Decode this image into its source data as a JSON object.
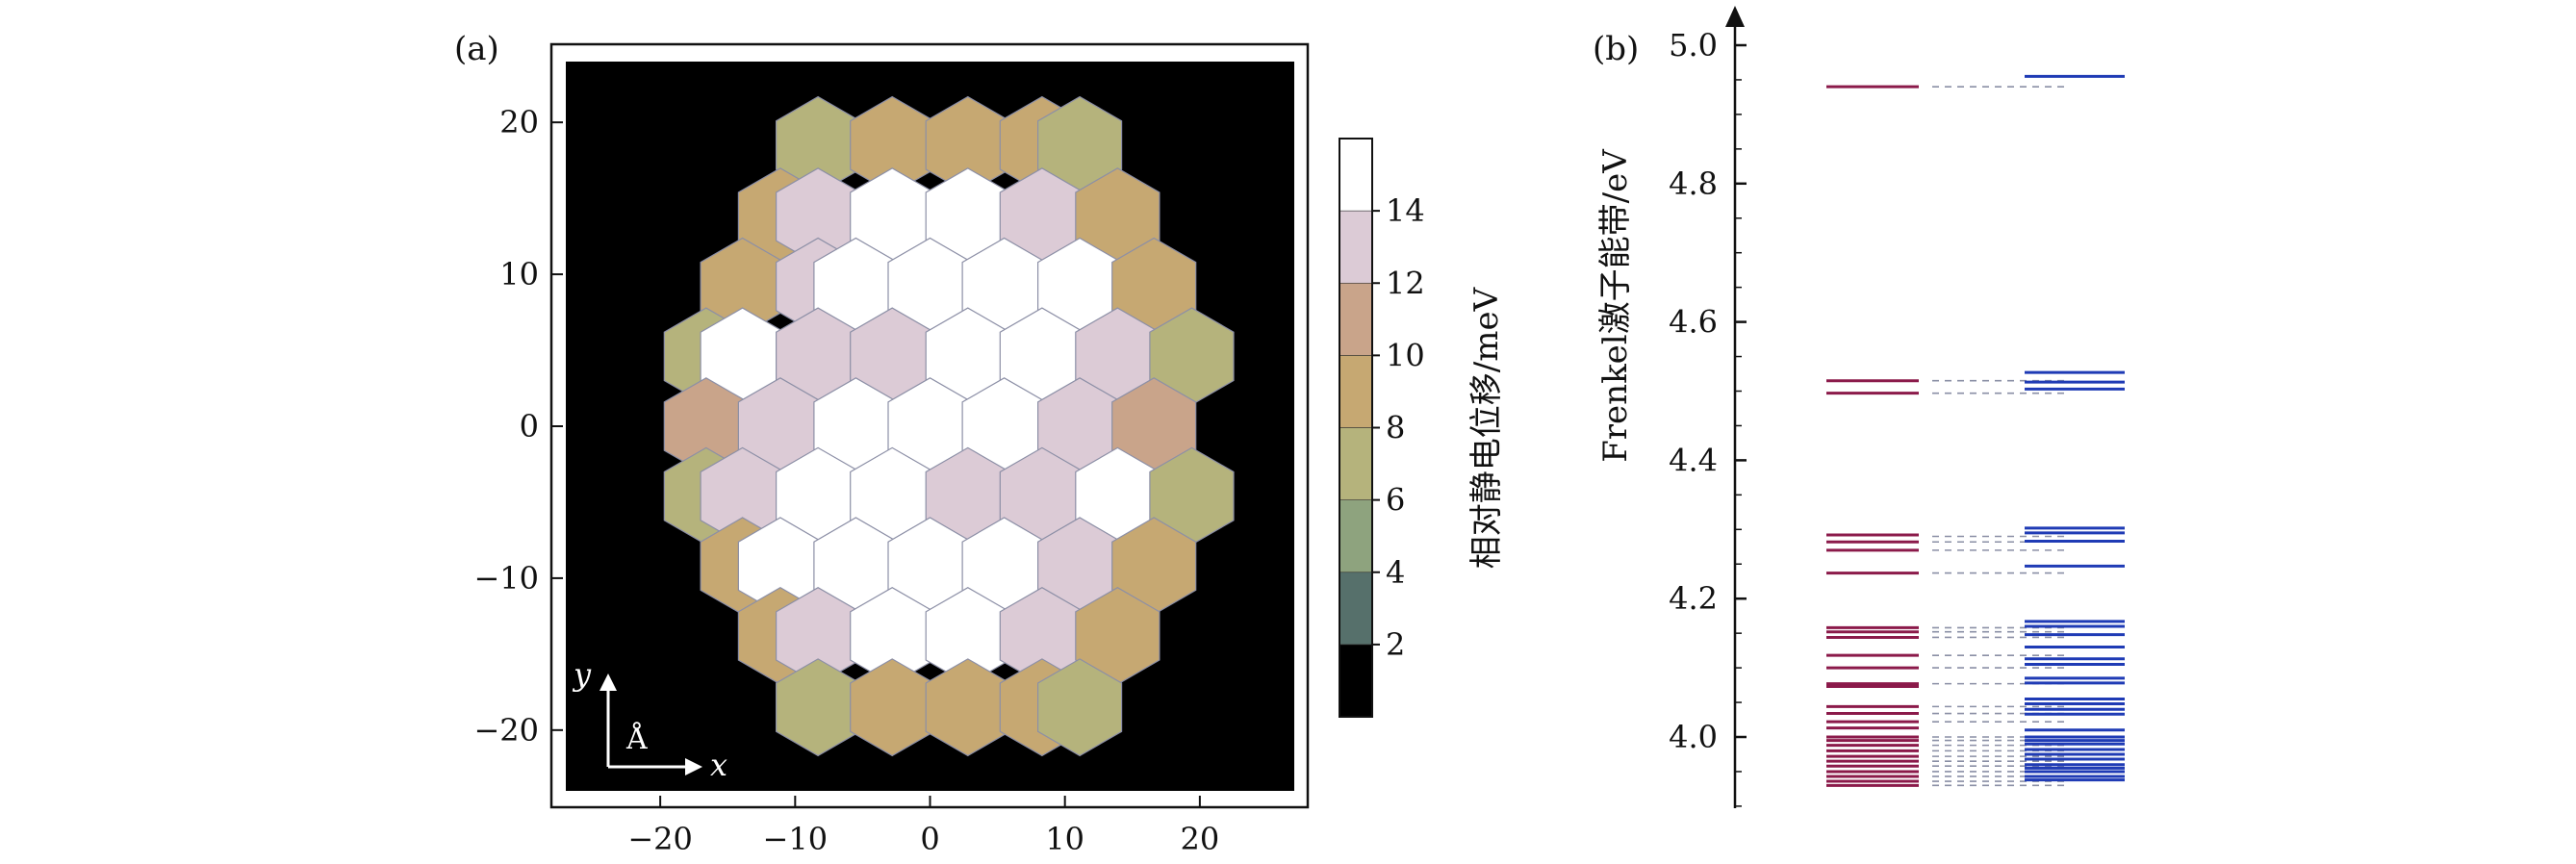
{
  "chart_data": [
    {
      "panel": "(a)",
      "type": "heatmap",
      "layout": "hexagonal-lattice",
      "xlim": [
        -27,
        27
      ],
      "ylim": [
        -24,
        24
      ],
      "xticks": [
        -20,
        -10,
        0,
        10,
        20
      ],
      "yticks": [
        -20,
        -10,
        0,
        10,
        20
      ],
      "xtick_labels": [
        "−20",
        "−10",
        "0",
        "10",
        "20"
      ],
      "ytick_labels": [
        "−20",
        "−10",
        "0",
        "10",
        "20"
      ],
      "hex_radius": 3.2,
      "cells": [
        {
          "x": -8.3,
          "y": 18.5,
          "value": 6
        },
        {
          "x": -2.8,
          "y": 18.5,
          "value": 9
        },
        {
          "x": 2.8,
          "y": 18.5,
          "value": 9
        },
        {
          "x": 8.3,
          "y": 18.5,
          "value": 9
        },
        {
          "x": 11.1,
          "y": 18.5,
          "value": 6
        },
        {
          "x": -11.1,
          "y": 13.8,
          "value": 9
        },
        {
          "x": -8.3,
          "y": 13.8,
          "value": 13
        },
        {
          "x": -2.8,
          "y": 13.8,
          "value": 15
        },
        {
          "x": 2.8,
          "y": 13.8,
          "value": 15
        },
        {
          "x": 8.3,
          "y": 13.8,
          "value": 13
        },
        {
          "x": 13.9,
          "y": 13.8,
          "value": 9
        },
        {
          "x": -13.9,
          "y": 9.2,
          "value": 9
        },
        {
          "x": -8.3,
          "y": 9.2,
          "value": 13
        },
        {
          "x": -5.5,
          "y": 9.2,
          "value": 15
        },
        {
          "x": 0.0,
          "y": 9.2,
          "value": 15
        },
        {
          "x": 5.5,
          "y": 9.2,
          "value": 15
        },
        {
          "x": 11.1,
          "y": 9.2,
          "value": 15
        },
        {
          "x": 16.6,
          "y": 9.2,
          "value": 9
        },
        {
          "x": -16.6,
          "y": 4.6,
          "value": 6
        },
        {
          "x": -13.9,
          "y": 4.6,
          "value": 15
        },
        {
          "x": -8.3,
          "y": 4.6,
          "value": 13
        },
        {
          "x": -2.8,
          "y": 4.6,
          "value": 13
        },
        {
          "x": 2.8,
          "y": 4.6,
          "value": 15
        },
        {
          "x": 8.3,
          "y": 4.6,
          "value": 15
        },
        {
          "x": 13.9,
          "y": 4.6,
          "value": 13
        },
        {
          "x": 19.4,
          "y": 4.6,
          "value": 6
        },
        {
          "x": -16.6,
          "y": 0.0,
          "value": 11
        },
        {
          "x": -11.1,
          "y": 0.0,
          "value": 13
        },
        {
          "x": -5.5,
          "y": 0.0,
          "value": 15
        },
        {
          "x": 0.0,
          "y": 0.0,
          "value": 15
        },
        {
          "x": 5.5,
          "y": 0.0,
          "value": 15
        },
        {
          "x": 11.1,
          "y": 0.0,
          "value": 13
        },
        {
          "x": 16.6,
          "y": 0.0,
          "value": 11
        },
        {
          "x": -16.6,
          "y": -4.6,
          "value": 6
        },
        {
          "x": -13.9,
          "y": -4.6,
          "value": 13
        },
        {
          "x": -8.3,
          "y": -4.6,
          "value": 15
        },
        {
          "x": -2.8,
          "y": -4.6,
          "value": 15
        },
        {
          "x": 2.8,
          "y": -4.6,
          "value": 13
        },
        {
          "x": 8.3,
          "y": -4.6,
          "value": 13
        },
        {
          "x": 13.9,
          "y": -4.6,
          "value": 15
        },
        {
          "x": 19.4,
          "y": -4.6,
          "value": 6
        },
        {
          "x": -13.9,
          "y": -9.2,
          "value": 9
        },
        {
          "x": -11.1,
          "y": -9.2,
          "value": 15
        },
        {
          "x": -5.5,
          "y": -9.2,
          "value": 15
        },
        {
          "x": 0.0,
          "y": -9.2,
          "value": 15
        },
        {
          "x": 5.5,
          "y": -9.2,
          "value": 15
        },
        {
          "x": 11.1,
          "y": -9.2,
          "value": 13
        },
        {
          "x": 16.6,
          "y": -9.2,
          "value": 9
        },
        {
          "x": -11.1,
          "y": -13.8,
          "value": 9
        },
        {
          "x": -8.3,
          "y": -13.8,
          "value": 13
        },
        {
          "x": -2.8,
          "y": -13.8,
          "value": 15
        },
        {
          "x": 2.8,
          "y": -13.8,
          "value": 15
        },
        {
          "x": 8.3,
          "y": -13.8,
          "value": 13
        },
        {
          "x": 13.9,
          "y": -13.8,
          "value": 9
        },
        {
          "x": -8.3,
          "y": -18.5,
          "value": 6
        },
        {
          "x": -2.8,
          "y": -18.5,
          "value": 9
        },
        {
          "x": 2.8,
          "y": -18.5,
          "value": 9
        },
        {
          "x": 8.3,
          "y": -18.5,
          "value": 9
        },
        {
          "x": 11.1,
          "y": -18.5,
          "value": 6
        }
      ],
      "colorbar": {
        "label": "相对静电位移/meV",
        "range": [
          0,
          16
        ],
        "ticks": [
          2,
          4,
          6,
          8,
          10,
          12,
          14
        ],
        "tick_labels": [
          "2",
          "4",
          "6",
          "8",
          "10",
          "12",
          "14"
        ],
        "bins": [
          {
            "from": 0,
            "to": 2,
            "color": "#000000"
          },
          {
            "from": 2,
            "to": 4,
            "color": "#56706b"
          },
          {
            "from": 4,
            "to": 6,
            "color": "#8ea37e"
          },
          {
            "from": 6,
            "to": 8,
            "color": "#b5b37c"
          },
          {
            "from": 8,
            "to": 10,
            "color": "#c6a872"
          },
          {
            "from": 10,
            "to": 12,
            "color": "#c9a48a"
          },
          {
            "from": 12,
            "to": 14,
            "color": "#dccbd6"
          },
          {
            "from": 14,
            "to": 16,
            "color": "#ffffff"
          }
        ]
      },
      "axis_arrows": {
        "y_label": "y",
        "x_label": "x",
        "unit_label": "Å"
      },
      "background_color": "#000000"
    },
    {
      "panel": "(b)",
      "type": "energy-levels",
      "ylabel": "Frenkel激子能带/eV",
      "ylim": [
        3.9,
        5.05
      ],
      "yticks": [
        4.0,
        4.2,
        4.4,
        4.6,
        4.8,
        5.0
      ],
      "ytick_labels": [
        "4.0",
        "4.2",
        "4.4",
        "4.6",
        "4.8",
        "5.0"
      ],
      "columns": [
        {
          "name": "",
          "color": "#8b1a4a",
          "style": "solid",
          "levels": [
            4.94,
            4.515,
            4.497,
            4.292,
            4.282,
            4.27,
            4.237,
            4.158,
            4.152,
            4.144,
            4.118,
            4.1,
            4.077,
            4.073,
            4.044,
            4.034,
            4.022,
            4.013,
            4.0,
            3.995,
            3.988,
            3.98,
            3.972,
            3.965,
            3.958,
            3.95,
            3.943,
            3.936,
            3.93
          ]
        },
        {
          "name": "",
          "color": "#8a8fa5",
          "style": "dashed",
          "levels": [
            4.94,
            4.515,
            4.497,
            4.29,
            4.282,
            4.27,
            4.237,
            4.158,
            4.152,
            4.144,
            4.118,
            4.1,
            4.077,
            4.044,
            4.034,
            4.022,
            4.0,
            3.995,
            3.988,
            3.98,
            3.972,
            3.965,
            3.958,
            3.95,
            3.943,
            3.936,
            3.93
          ]
        },
        {
          "name": "",
          "color": "#1f3bb5",
          "style": "solid",
          "levels": [
            4.955,
            4.527,
            4.513,
            4.503,
            4.302,
            4.295,
            4.283,
            4.247,
            4.167,
            4.16,
            4.148,
            4.13,
            4.113,
            4.105,
            4.085,
            4.078,
            4.055,
            4.048,
            4.04,
            4.033,
            4.01,
            4.0,
            3.995,
            3.99,
            3.982,
            3.975,
            3.968,
            3.96,
            3.955,
            3.95,
            3.943,
            3.938
          ]
        }
      ]
    }
  ],
  "labels": {
    "panel_a": "(a)",
    "panel_b": "(b)"
  }
}
